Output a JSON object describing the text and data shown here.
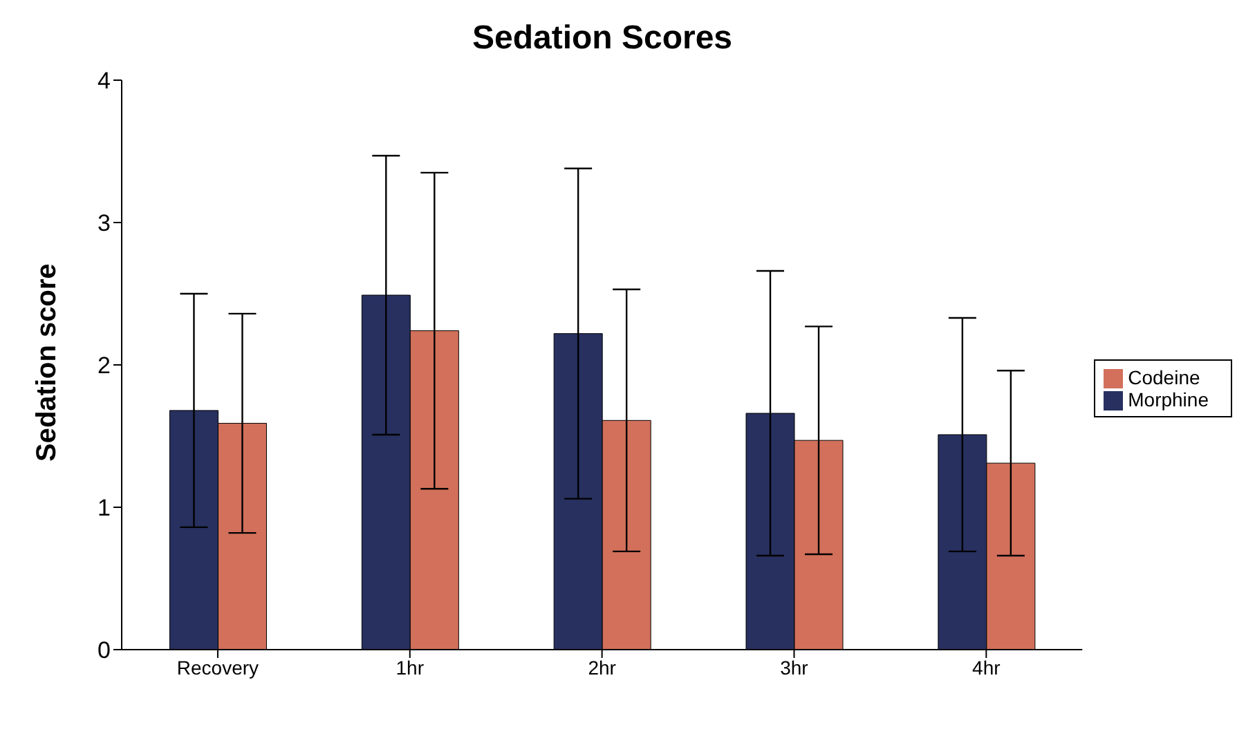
{
  "chart_data": {
    "type": "bar",
    "title": "Sedation Scores",
    "ylabel": "Sedation score",
    "categories": [
      "Recovery",
      "1hr",
      "2hr",
      "3hr",
      "4hr"
    ],
    "series": [
      {
        "name": "Morphine",
        "color": "#27305f",
        "values": [
          1.68,
          2.49,
          2.22,
          1.66,
          1.51
        ],
        "errors": [
          0.82,
          0.98,
          1.16,
          1.0,
          0.82
        ]
      },
      {
        "name": "Codeine",
        "color": "#d2705b",
        "values": [
          1.59,
          2.24,
          1.61,
          1.47,
          1.31
        ],
        "errors": [
          0.77,
          1.11,
          0.92,
          0.8,
          0.65
        ]
      }
    ],
    "ylim": [
      0,
      4
    ],
    "yticks": [
      0,
      1,
      2,
      3,
      4
    ],
    "grid": false,
    "legend": "right"
  }
}
